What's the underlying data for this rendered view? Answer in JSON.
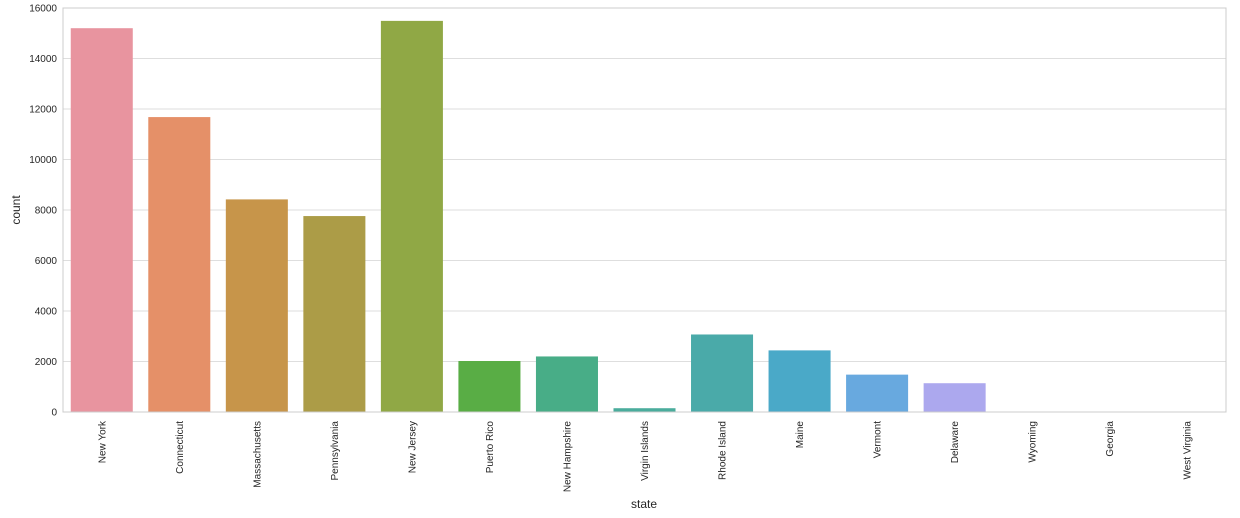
{
  "chart_data": {
    "type": "bar",
    "title": "",
    "xlabel": "state",
    "ylabel": "count",
    "ylim": [
      0,
      16000
    ],
    "y_ticks": [
      0,
      2000,
      4000,
      6000,
      8000,
      10000,
      12000,
      14000,
      16000
    ],
    "grid": true,
    "categories": [
      "New York",
      "Connecticut",
      "Massachusetts",
      "Pennsylvania",
      "New Jersey",
      "Puerto Rico",
      "New Hampshire",
      "Virgin Islands",
      "Rhode Island",
      "Maine",
      "Vermont",
      "Delaware",
      "Wyoming",
      "Georgia",
      "West Virginia"
    ],
    "values": [
      15200,
      11680,
      8420,
      7760,
      15490,
      2020,
      2200,
      150,
      3070,
      2440,
      1480,
      1140,
      2,
      2,
      2
    ],
    "colors": [
      "#e8949f",
      "#e59068",
      "#c7954a",
      "#ac9c47",
      "#90a845",
      "#59ad45",
      "#48ad87",
      "#4aac9c",
      "#4aaaa9",
      "#4aa9c8",
      "#68a9df",
      "#aca8ee",
      "#d49ff1",
      "#ed94dd",
      "#ef94c3"
    ]
  }
}
